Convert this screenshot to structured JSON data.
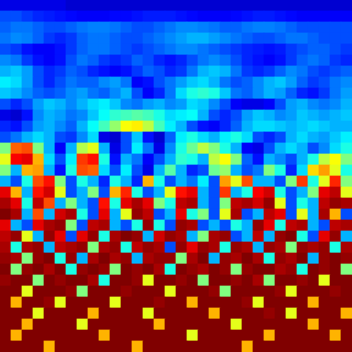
{
  "chart_data": {
    "type": "heatmap",
    "tick_labels": false,
    "colorbar_range": [
      0,
      1
    ],
    "cells": [
      [
        0.1,
        0.1,
        0.1,
        0.1,
        0.1,
        0.1,
        0.08,
        0.08,
        0.08,
        0.08,
        0.08,
        0.08,
        0.08,
        0.08,
        0.08,
        0.08,
        0.08,
        0.08,
        0.08,
        0.08,
        0.08,
        0.08,
        0.08,
        0.08,
        0.08,
        0.08,
        0.08,
        0.08,
        0.08,
        0.08,
        0.08,
        0.08
      ],
      [
        0.2,
        0.2,
        0.18,
        0.16,
        0.15,
        0.14,
        0.13,
        0.12,
        0.12,
        0.12,
        0.13,
        0.13,
        0.14,
        0.15,
        0.15,
        0.15,
        0.14,
        0.13,
        0.12,
        0.12,
        0.12,
        0.13,
        0.14,
        0.15,
        0.15,
        0.14,
        0.13,
        0.12,
        0.12,
        0.12,
        0.12,
        0.12
      ],
      [
        0.22,
        0.24,
        0.24,
        0.22,
        0.2,
        0.2,
        0.22,
        0.24,
        0.25,
        0.25,
        0.24,
        0.22,
        0.2,
        0.2,
        0.22,
        0.24,
        0.26,
        0.26,
        0.25,
        0.24,
        0.22,
        0.22,
        0.24,
        0.25,
        0.25,
        0.24,
        0.22,
        0.2,
        0.2,
        0.2,
        0.2,
        0.2
      ],
      [
        0.24,
        0.26,
        0.25,
        0.22,
        0.18,
        0.16,
        0.18,
        0.22,
        0.24,
        0.24,
        0.22,
        0.2,
        0.2,
        0.22,
        0.24,
        0.26,
        0.28,
        0.3,
        0.3,
        0.28,
        0.26,
        0.24,
        0.22,
        0.2,
        0.2,
        0.22,
        0.24,
        0.24,
        0.22,
        0.2,
        0.2,
        0.2
      ],
      [
        0.2,
        0.18,
        0.14,
        0.12,
        0.12,
        0.14,
        0.18,
        0.22,
        0.24,
        0.24,
        0.22,
        0.2,
        0.18,
        0.2,
        0.22,
        0.24,
        0.26,
        0.26,
        0.24,
        0.22,
        0.2,
        0.18,
        0.16,
        0.15,
        0.14,
        0.15,
        0.18,
        0.2,
        0.22,
        0.22,
        0.2,
        0.18
      ],
      [
        0.26,
        0.24,
        0.18,
        0.14,
        0.12,
        0.14,
        0.2,
        0.24,
        0.22,
        0.18,
        0.16,
        0.18,
        0.22,
        0.2,
        0.16,
        0.14,
        0.16,
        0.2,
        0.24,
        0.26,
        0.24,
        0.2,
        0.16,
        0.14,
        0.12,
        0.14,
        0.18,
        0.22,
        0.24,
        0.22,
        0.18,
        0.16
      ],
      [
        0.3,
        0.32,
        0.28,
        0.2,
        0.16,
        0.18,
        0.22,
        0.2,
        0.16,
        0.14,
        0.12,
        0.14,
        0.18,
        0.22,
        0.2,
        0.16,
        0.18,
        0.24,
        0.3,
        0.32,
        0.3,
        0.24,
        0.18,
        0.16,
        0.18,
        0.22,
        0.26,
        0.24,
        0.2,
        0.18,
        0.2,
        0.22
      ],
      [
        0.36,
        0.34,
        0.28,
        0.2,
        0.16,
        0.2,
        0.24,
        0.22,
        0.22,
        0.26,
        0.28,
        0.24,
        0.12,
        0.14,
        0.2,
        0.24,
        0.28,
        0.32,
        0.34,
        0.3,
        0.24,
        0.2,
        0.22,
        0.26,
        0.3,
        0.32,
        0.28,
        0.22,
        0.18,
        0.2,
        0.24,
        0.26
      ],
      [
        0.32,
        0.3,
        0.26,
        0.22,
        0.2,
        0.22,
        0.26,
        0.28,
        0.24,
        0.22,
        0.26,
        0.3,
        0.2,
        0.12,
        0.16,
        0.24,
        0.34,
        0.4,
        0.42,
        0.4,
        0.32,
        0.24,
        0.22,
        0.26,
        0.3,
        0.28,
        0.22,
        0.16,
        0.14,
        0.18,
        0.24,
        0.28
      ],
      [
        0.2,
        0.16,
        0.2,
        0.28,
        0.32,
        0.3,
        0.26,
        0.3,
        0.34,
        0.36,
        0.32,
        0.26,
        0.24,
        0.28,
        0.3,
        0.26,
        0.28,
        0.34,
        0.32,
        0.26,
        0.2,
        0.12,
        0.1,
        0.1,
        0.12,
        0.2,
        0.28,
        0.3,
        0.26,
        0.24,
        0.26,
        0.3
      ],
      [
        0.1,
        0.08,
        0.14,
        0.26,
        0.3,
        0.28,
        0.24,
        0.26,
        0.32,
        0.38,
        0.42,
        0.44,
        0.46,
        0.44,
        0.4,
        0.34,
        0.36,
        0.38,
        0.3,
        0.2,
        0.16,
        0.2,
        0.28,
        0.32,
        0.3,
        0.26,
        0.28,
        0.32,
        0.3,
        0.28,
        0.3,
        0.32
      ],
      [
        0.16,
        0.14,
        0.2,
        0.28,
        0.3,
        0.26,
        0.22,
        0.3,
        0.38,
        0.44,
        0.52,
        0.62,
        0.64,
        0.56,
        0.44,
        0.36,
        0.3,
        0.2,
        0.14,
        0.12,
        0.16,
        0.22,
        0.3,
        0.34,
        0.34,
        0.32,
        0.3,
        0.32,
        0.34,
        0.32,
        0.3,
        0.3
      ],
      [
        0.2,
        0.24,
        0.3,
        0.34,
        0.3,
        0.2,
        0.18,
        0.26,
        0.34,
        0.1,
        0.08,
        0.2,
        0.32,
        0.14,
        0.08,
        0.22,
        0.36,
        0.4,
        0.34,
        0.3,
        0.36,
        0.4,
        0.34,
        0.2,
        0.16,
        0.2,
        0.3,
        0.34,
        0.3,
        0.28,
        0.32,
        0.36
      ],
      [
        0.5,
        0.78,
        0.8,
        0.5,
        0.3,
        0.12,
        0.3,
        0.55,
        0.6,
        0.3,
        0.1,
        0.2,
        0.36,
        0.24,
        0.1,
        0.26,
        0.4,
        0.48,
        0.56,
        0.5,
        0.4,
        0.3,
        0.12,
        0.1,
        0.2,
        0.3,
        0.34,
        0.3,
        0.2,
        0.26,
        0.34,
        0.4
      ],
      [
        0.6,
        0.88,
        0.9,
        0.7,
        0.34,
        0.2,
        0.36,
        0.82,
        0.86,
        0.4,
        0.14,
        0.3,
        0.24,
        0.12,
        0.2,
        0.3,
        0.42,
        0.4,
        0.3,
        0.56,
        0.62,
        0.5,
        0.22,
        0.14,
        0.3,
        0.26,
        0.2,
        0.3,
        0.4,
        0.56,
        0.62,
        0.5
      ],
      [
        0.5,
        0.3,
        0.7,
        0.72,
        0.3,
        0.14,
        0.4,
        0.8,
        0.78,
        0.34,
        0.2,
        0.36,
        0.2,
        0.1,
        0.3,
        0.46,
        0.3,
        0.16,
        0.2,
        0.48,
        0.52,
        0.3,
        0.2,
        0.24,
        0.5,
        0.4,
        0.16,
        0.34,
        0.66,
        0.72,
        0.6,
        0.4
      ],
      [
        0.3,
        0.2,
        0.4,
        0.8,
        0.86,
        0.5,
        0.2,
        0.4,
        0.3,
        0.16,
        0.4,
        0.3,
        0.16,
        0.7,
        0.4,
        0.2,
        0.3,
        0.24,
        0.36,
        0.2,
        0.72,
        0.6,
        0.8,
        0.3,
        0.3,
        0.2,
        0.5,
        0.82,
        0.4,
        0.6,
        0.84,
        0.5
      ],
      [
        0.9,
        0.7,
        0.3,
        0.86,
        0.92,
        0.6,
        0.2,
        0.3,
        0.5,
        0.2,
        0.7,
        0.84,
        0.4,
        0.2,
        0.3,
        0.6,
        0.86,
        0.9,
        0.3,
        0.2,
        0.82,
        0.3,
        0.4,
        0.88,
        0.92,
        0.4,
        0.2,
        0.3,
        0.5,
        0.9,
        0.94,
        0.6
      ],
      [
        0.96,
        0.9,
        0.4,
        0.94,
        0.8,
        0.3,
        0.5,
        0.3,
        0.2,
        0.86,
        0.4,
        0.9,
        0.96,
        0.9,
        0.5,
        0.4,
        0.94,
        0.96,
        0.3,
        0.2,
        0.5,
        0.94,
        0.96,
        0.92,
        0.98,
        0.6,
        0.2,
        0.4,
        0.3,
        0.94,
        0.98,
        0.96
      ],
      [
        1,
        0.96,
        0.3,
        0.8,
        0.3,
        0.92,
        0.96,
        0.4,
        0.2,
        0.9,
        0.3,
        0.6,
        0.98,
        0.94,
        0.2,
        0.3,
        0.9,
        0.4,
        0.5,
        0.2,
        0.6,
        0.96,
        0.2,
        0.3,
        0.94,
        0.9,
        0.2,
        0.6,
        0.3,
        0.96,
        0.7,
        0.2
      ],
      [
        0.9,
        0.3,
        0.2,
        0.9,
        0.96,
        0.98,
        0.5,
        0.2,
        0.94,
        0.96,
        0.3,
        0.2,
        0.4,
        0.98,
        0.4,
        0.2,
        0.98,
        0.96,
        0.2,
        0.3,
        0.2,
        0.4,
        0.3,
        0.98,
        0.9,
        0.4,
        0.94,
        0.96,
        0.3,
        0.2,
        0.94,
        0.96
      ],
      [
        0.94,
        0.98,
        0.6,
        0.3,
        0.98,
        0.9,
        0.2,
        0.9,
        0.98,
        0.4,
        0.96,
        1,
        0.98,
        0.3,
        0.92,
        0.98,
        0.96,
        0.3,
        0.5,
        0.96,
        0.98,
        0.2,
        0.3,
        0.94,
        0.3,
        0.98,
        1,
        0.4,
        0.2,
        0.9,
        0.98,
        0.3
      ],
      [
        0.96,
        0.4,
        0.96,
        0.98,
        0.3,
        0.94,
        0.96,
        0.98,
        0.5,
        0.96,
        0.98,
        0.4,
        0.94,
        0.98,
        0.96,
        0.2,
        0.98,
        0.9,
        0.98,
        0.96,
        0.4,
        0.98,
        0.96,
        0.3,
        0.98,
        0.96,
        0.5,
        0.98,
        0.96,
        0.98,
        0.4,
        0.96
      ],
      [
        0.98,
        0.96,
        0.5,
        0.98,
        1,
        0.4,
        0.98,
        0.3,
        0.96,
        1,
        0.96,
        0.98,
        0.3,
        0.96,
        0.98,
        0.98,
        0.5,
        0.96,
        1,
        0.3,
        0.98,
        0.96,
        1,
        0.96,
        0.4,
        0.98,
        0.96,
        1,
        0.3,
        0.98,
        1,
        0.98
      ],
      [
        1,
        0.5,
        0.98,
        1,
        0.96,
        1,
        0.4,
        0.98,
        1,
        0.98,
        0.5,
        1,
        0.98,
        1,
        0.96,
        0.4,
        1,
        0.98,
        0.96,
        1,
        0.98,
        0.5,
        0.98,
        1,
        1,
        0.96,
        0.98,
        0.4,
        1,
        0.98,
        1,
        0.5
      ],
      [
        0.98,
        1,
        1,
        0.5,
        1,
        0.98,
        1,
        1,
        0.96,
        0.4,
        1,
        1,
        0.98,
        0.6,
        1,
        1,
        0.98,
        1,
        0.5,
        1,
        1,
        0.98,
        1,
        0.96,
        0.5,
        1,
        1,
        0.98,
        1,
        0.6,
        1,
        1
      ],
      [
        1,
        1,
        0.6,
        1,
        1,
        1,
        0.98,
        0.5,
        1,
        1,
        1,
        0.98,
        1,
        1,
        1,
        0.6,
        1,
        1,
        1,
        0.98,
        0.5,
        1,
        1,
        1,
        1,
        0.98,
        0.6,
        1,
        1,
        1,
        0.98,
        1
      ],
      [
        1,
        0.7,
        1,
        1,
        0.98,
        0.6,
        1,
        1,
        1,
        1,
        0.6,
        1,
        1,
        1,
        0.98,
        1,
        1,
        0.7,
        1,
        1,
        1,
        1,
        0.98,
        0.6,
        1,
        1,
        1,
        1,
        0.7,
        1,
        1,
        1
      ],
      [
        1,
        1,
        1,
        0.6,
        1,
        1,
        1,
        1,
        0.7,
        1,
        1,
        1,
        1,
        0.6,
        1,
        1,
        1,
        1,
        1,
        0.7,
        1,
        1,
        1,
        1,
        0.98,
        1,
        0.6,
        1,
        1,
        1,
        1,
        0.7
      ],
      [
        1,
        1,
        0.7,
        1,
        1,
        1,
        1,
        0.6,
        1,
        1,
        1,
        1,
        1,
        1,
        0.7,
        1,
        1,
        1,
        1,
        1,
        1,
        0.6,
        1,
        1,
        1,
        1,
        1,
        1,
        0.7,
        1,
        1,
        1
      ],
      [
        1,
        0.7,
        1,
        1,
        1,
        1,
        1,
        1,
        1,
        0.7,
        1,
        1,
        1,
        1,
        1,
        1,
        1,
        0.6,
        1,
        1,
        1,
        1,
        1,
        1,
        0.7,
        1,
        1,
        1,
        1,
        1,
        0.7,
        1
      ],
      [
        1,
        1,
        1,
        1,
        0.7,
        1,
        1,
        1,
        1,
        1,
        1,
        1,
        0.7,
        1,
        1,
        1,
        1,
        1,
        1,
        1,
        1,
        1,
        0.7,
        1,
        1,
        1,
        1,
        1,
        1,
        1,
        1,
        1
      ]
    ]
  }
}
